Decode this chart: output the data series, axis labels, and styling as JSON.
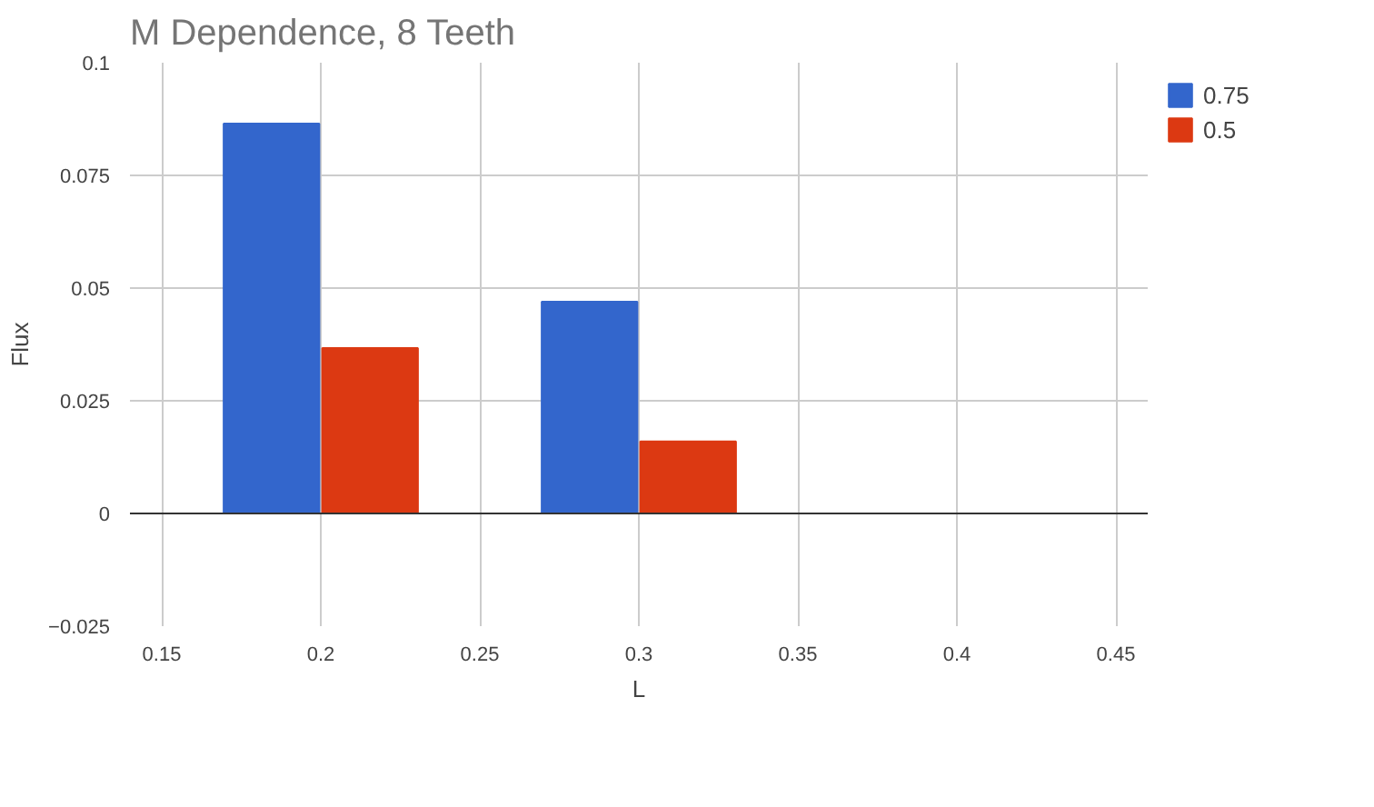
{
  "chart_data": {
    "type": "bar",
    "title": "M Dependence, 8 Teeth",
    "xlabel": "L",
    "ylabel": "Flux",
    "x": [
      0.2,
      0.3,
      0.4
    ],
    "series": [
      {
        "name": "0.75",
        "color": "#3366cc",
        "values": [
          0.0865,
          0.047,
          0
        ]
      },
      {
        "name": "0.5",
        "color": "#dc3912",
        "values": [
          0.0367,
          0.016,
          0
        ]
      }
    ],
    "xlim": [
      0.14,
      0.46
    ],
    "xticks": [
      0.15,
      0.2,
      0.25,
      0.3,
      0.35,
      0.4,
      0.45
    ],
    "ylim": [
      -0.025,
      0.1
    ],
    "yticks": [
      -0.025,
      0,
      0.025,
      0.05,
      0.075,
      0.1
    ],
    "grid": true,
    "legend": "top right"
  }
}
